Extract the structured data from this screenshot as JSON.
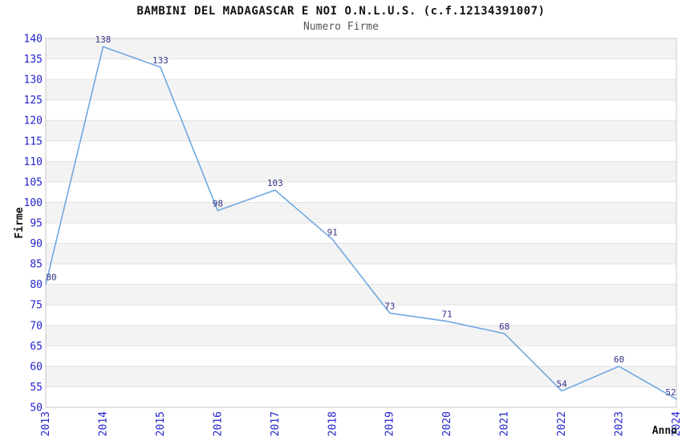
{
  "chart_data": {
    "type": "line",
    "title": "BAMBINI DEL MADAGASCAR E NOI O.N.L.U.S. (c.f.12134391007)",
    "subtitle": "Numero Firme",
    "xlabel": "Anno",
    "ylabel": "Firme",
    "categories": [
      "2013",
      "2014",
      "2015",
      "2016",
      "2017",
      "2018",
      "2019",
      "2020",
      "2021",
      "2022",
      "2023",
      "2024"
    ],
    "values": [
      80,
      138,
      133,
      98,
      103,
      91,
      73,
      71,
      68,
      54,
      60,
      52
    ],
    "ylim": [
      50,
      140
    ],
    "ytick_step": 5,
    "grid": "horizontal-alternating-bands",
    "legend_position": "none",
    "markers": "none",
    "colors": {
      "line": "#6fa8e0",
      "tick_labels": "#2222cc",
      "value_labels": "#333388",
      "band_fill": "#f3f3f3",
      "gridline": "#e2e2e2",
      "plot_border": "#c9c9c9",
      "title": "#111111",
      "subtitle": "#555555",
      "axis_titles": "#111111",
      "background": "#ffffff"
    }
  }
}
